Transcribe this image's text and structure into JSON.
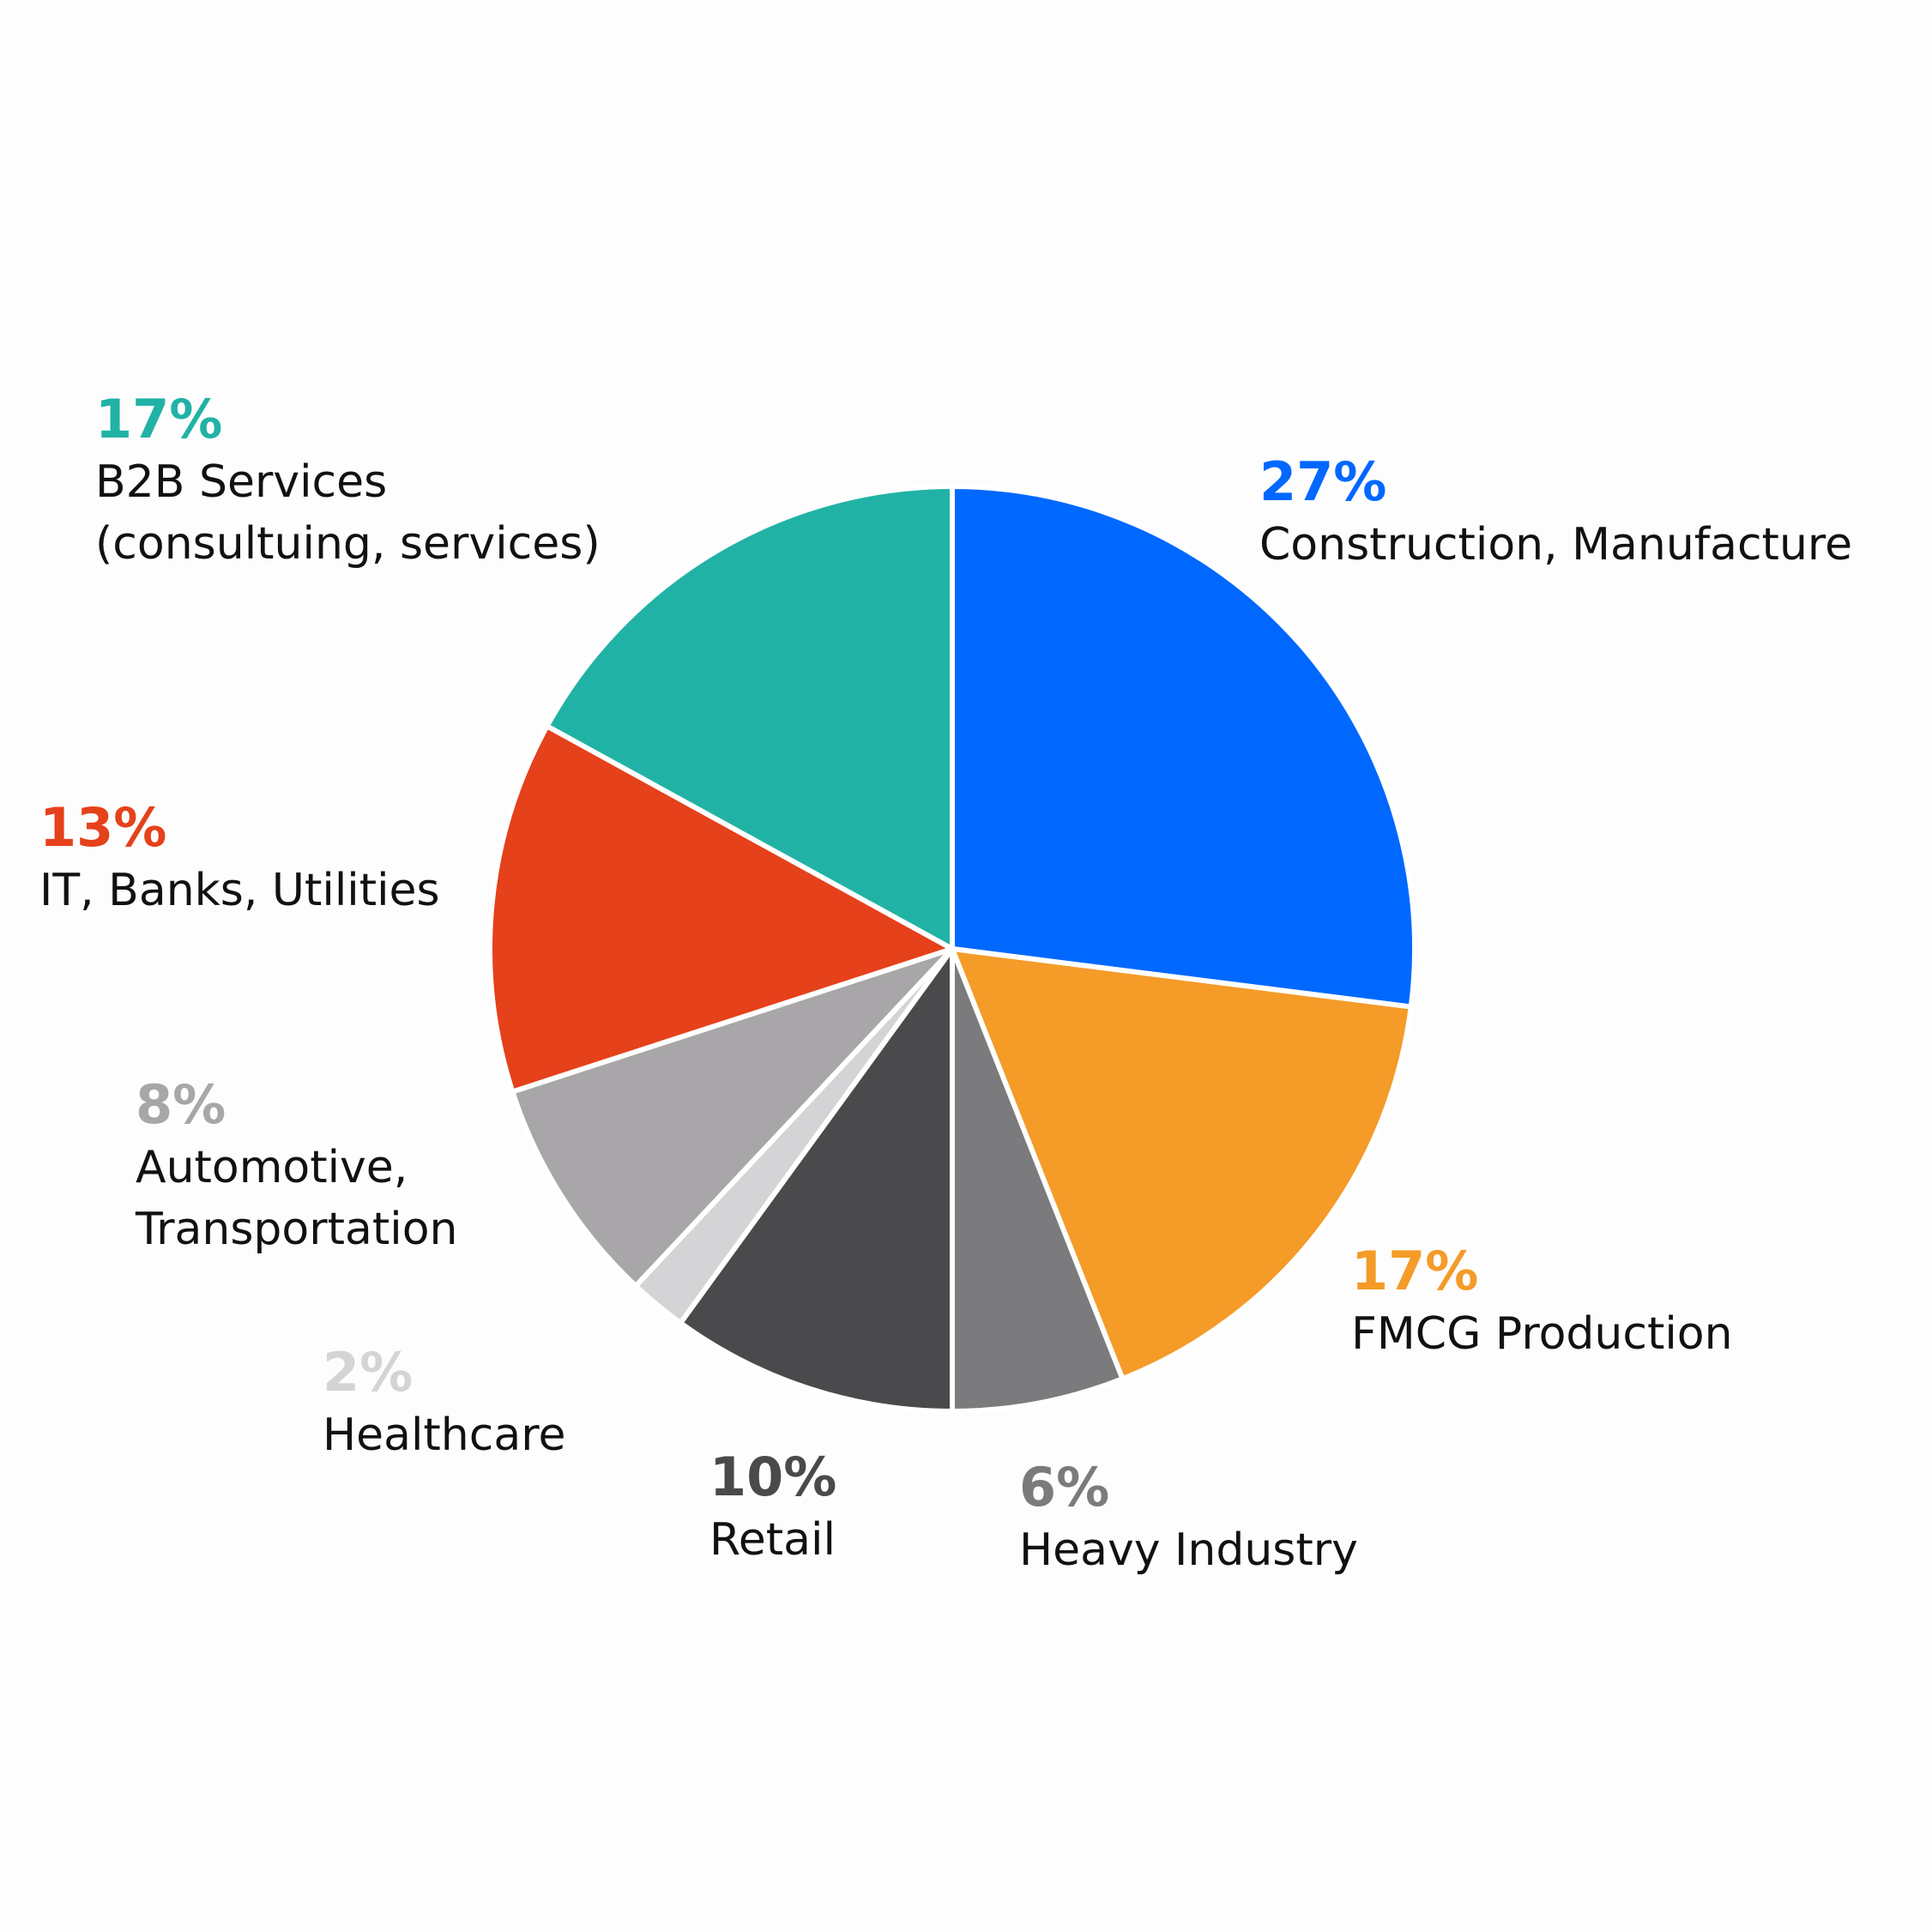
{
  "chart_data": {
    "type": "pie",
    "categories": [
      "Construction, Manufacture",
      "FMCG Production",
      "Heavy Industry",
      "Retail",
      "Healthcare",
      "Automotive,\nTransportation",
      "IT, Banks, Utilities",
      "B2B Services\n(consultuing, services)"
    ],
    "values": [
      27,
      17,
      6,
      10,
      2,
      8,
      13,
      17
    ],
    "value_labels": [
      "27%",
      "17%",
      "6%",
      "10%",
      "2%",
      "8%",
      "13%",
      "17%"
    ],
    "colors": [
      "#0068ff",
      "#f49b28",
      "#7b7a7c",
      "#4a494b",
      "#d4d4d6",
      "#a8a6a8",
      "#e5411b",
      "#21b2a6"
    ]
  }
}
